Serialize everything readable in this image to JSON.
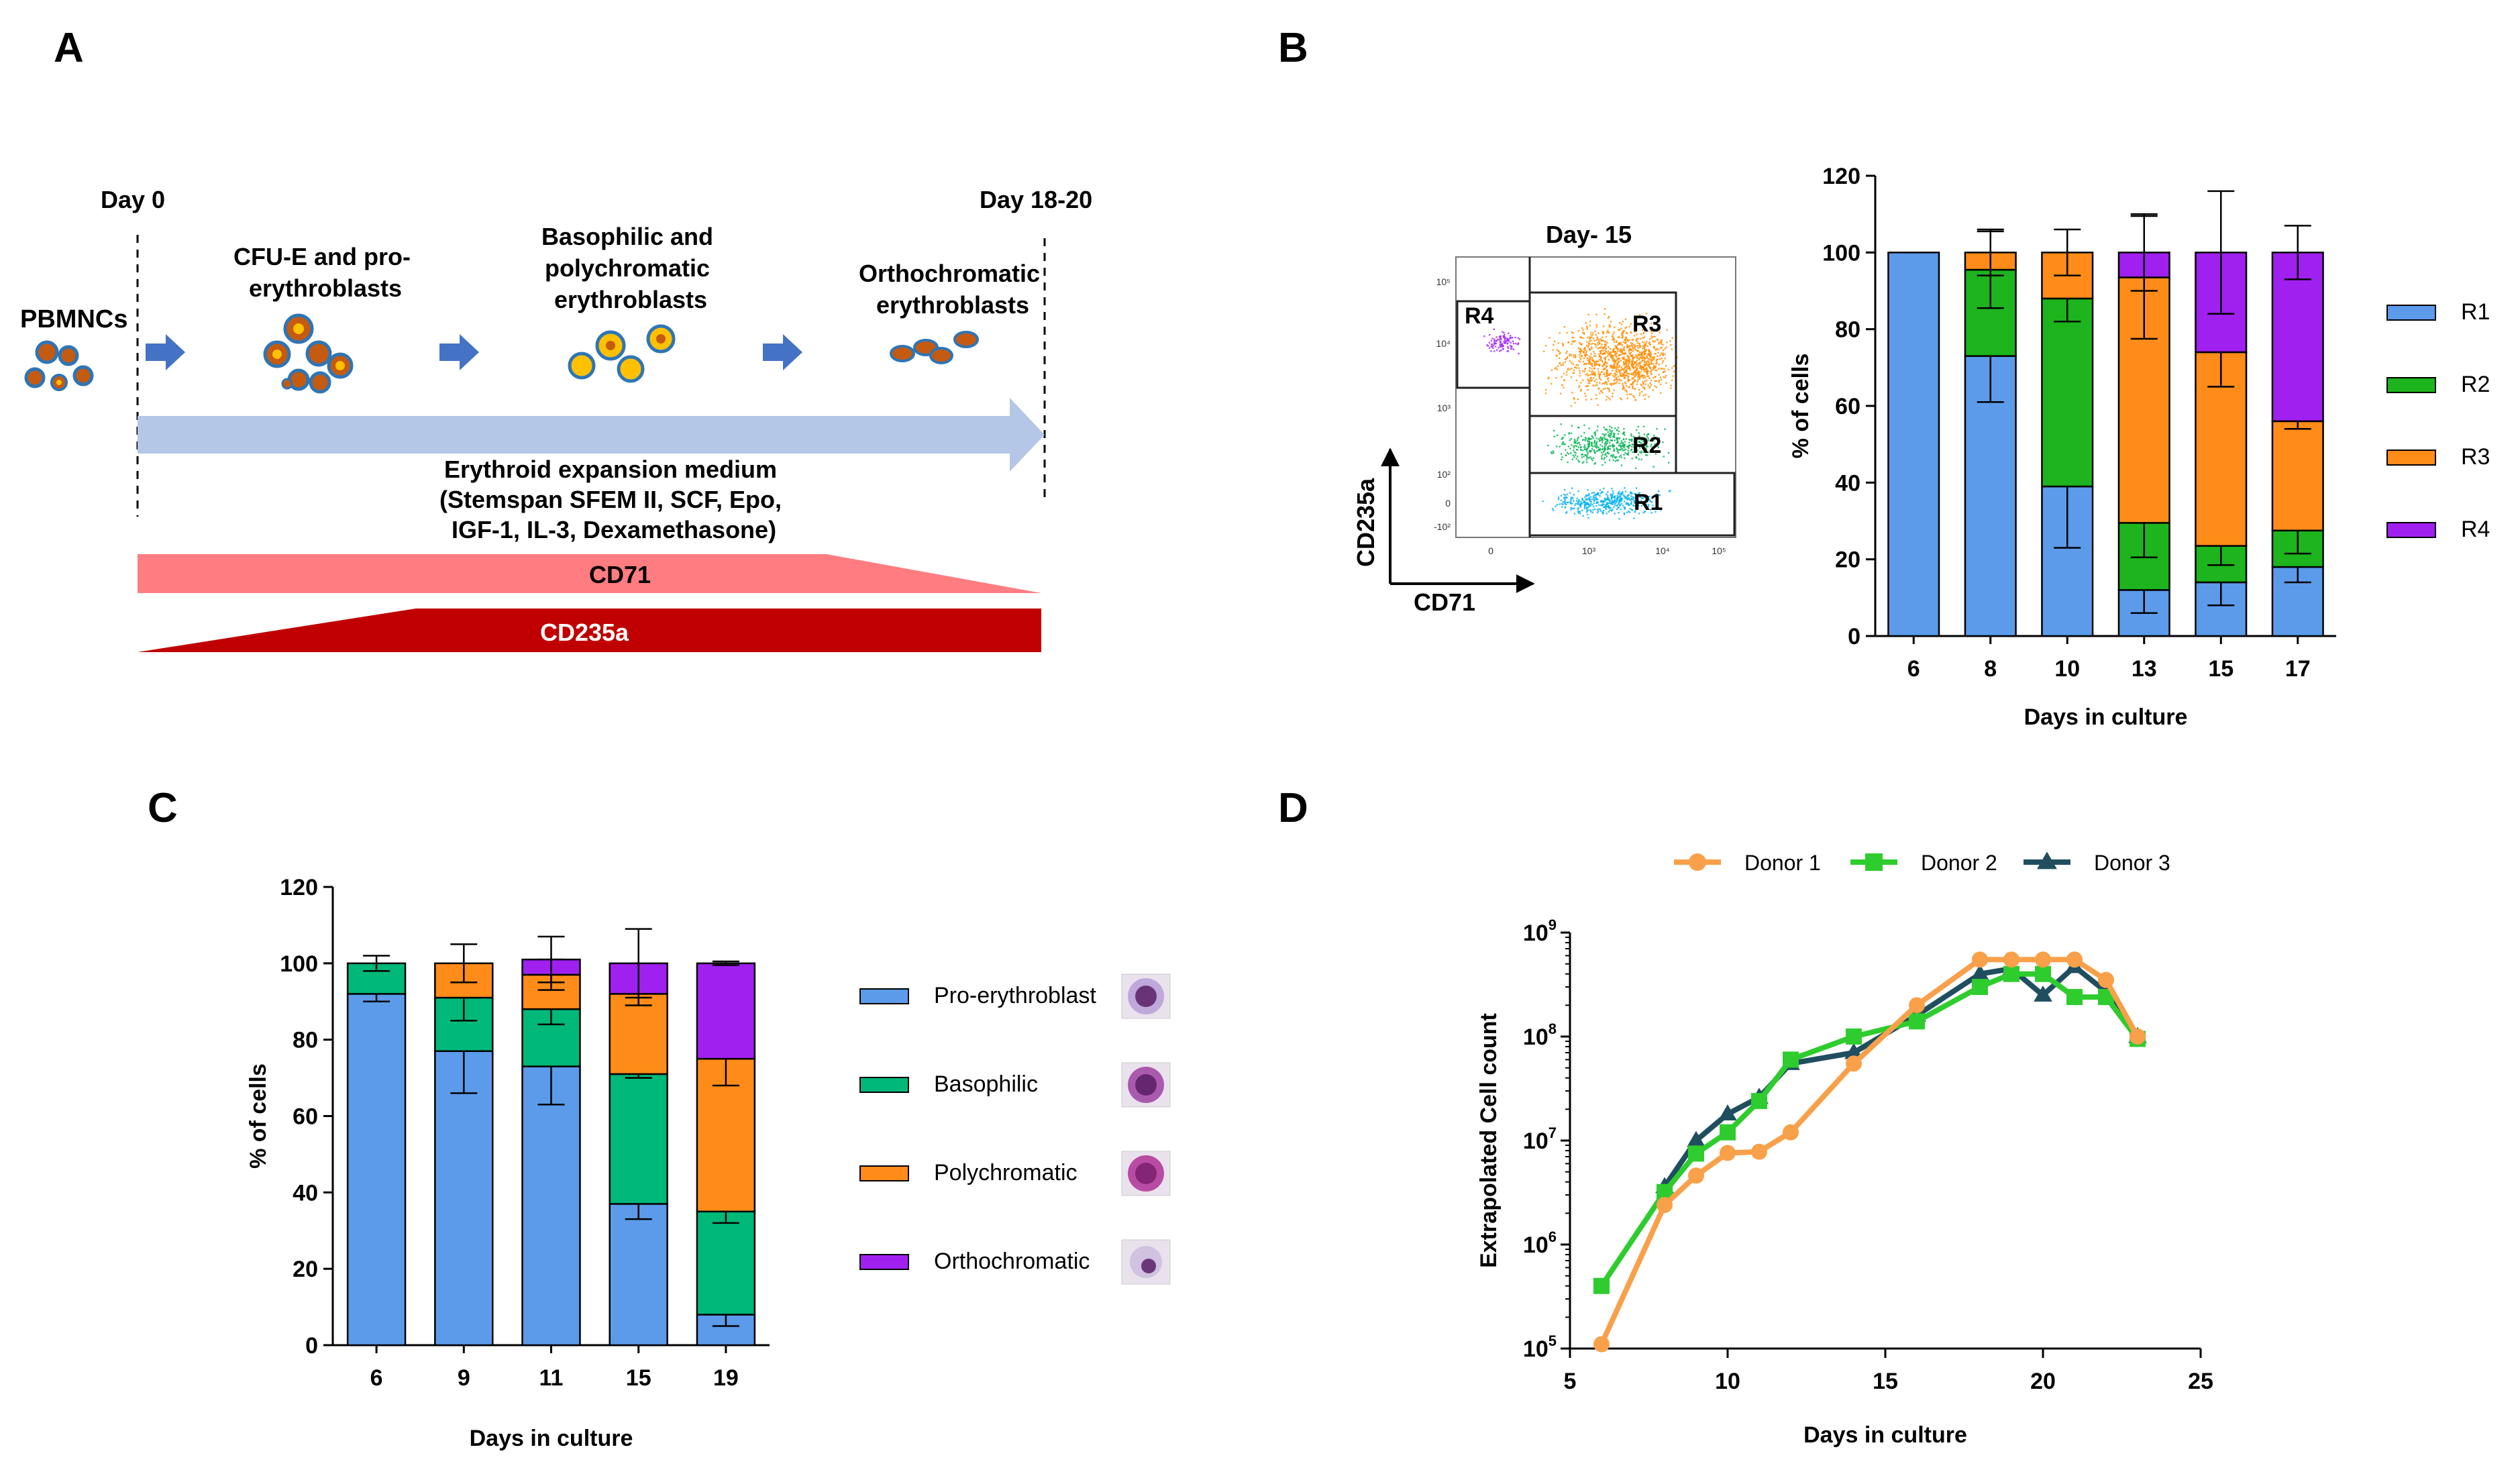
{
  "panels": {
    "a": "A",
    "b": "B",
    "c": "C",
    "d": "D"
  },
  "schematic": {
    "day_start": "Day 0",
    "day_end": "Day 18-20",
    "pbmncs": "PBMNCs",
    "stage1": [
      "CFU-E and pro-",
      "erythroblasts"
    ],
    "stage2": [
      "Basophilic and",
      "polychromatic",
      "erythroblasts"
    ],
    "stage3": [
      "Orthochromatic",
      "erythroblasts"
    ],
    "medium": [
      "Erythroid expansion medium",
      "(Stemspan SFEM II, SCF, Epo,",
      "IGF-1, IL-3, Dexamethasone)"
    ],
    "marker1": "CD71",
    "marker2": "CD235a",
    "colors": {
      "arrow": "#b4c7e7",
      "cd71": "#ff7c80",
      "cd235a": "#c00000",
      "step_arrow": "#4472c4",
      "cell_fill": "#c55a11",
      "cell_ring": "#2e75b6",
      "cell_yellow": "#ffc000"
    }
  },
  "flow": {
    "title": "Day- 15",
    "gates": [
      "R1",
      "R2",
      "R3",
      "R4"
    ],
    "ylabel": "CD235a",
    "xlabel": "CD71",
    "ticks_x": [
      "0",
      "10³",
      "10⁴",
      "10⁵"
    ],
    "ticks_y": [
      "10⁵",
      "10⁴",
      "10³",
      "10²",
      "0",
      "-10²"
    ],
    "colors": {
      "R1": "#00b0f0",
      "R2": "#00b050",
      "R3": "#ff8c00",
      "R4": "#a020f0"
    }
  },
  "chart_data": [
    {
      "id": "B",
      "type": "bar",
      "stacked": true,
      "categories": [
        "6",
        "8",
        "10",
        "13",
        "15",
        "17"
      ],
      "series": [
        {
          "name": "R1",
          "color": "#5b9bea",
          "values": [
            100,
            73,
            39,
            12,
            14,
            18
          ],
          "err": [
            0,
            12,
            16,
            6,
            6,
            4
          ]
        },
        {
          "name": "R2",
          "color": "#1db41d",
          "values": [
            0,
            22.5,
            49,
            17.5,
            9.5,
            9.5
          ],
          "err": [
            0,
            10,
            6,
            9,
            5,
            6
          ]
        },
        {
          "name": "R3",
          "color": "#ff8c19",
          "values": [
            0,
            4.5,
            12,
            64,
            50.5,
            28.5
          ],
          "err": [
            0,
            6,
            6,
            16,
            9,
            2
          ]
        },
        {
          "name": "R4",
          "color": "#a020f0",
          "values": [
            0,
            0,
            0,
            6.5,
            26,
            44
          ],
          "err": [
            0,
            0,
            0,
            10,
            16,
            7
          ]
        }
      ],
      "xlabel": "Days in culture",
      "ylabel": "% of cells",
      "ylim": [
        0,
        120
      ],
      "yticks": [
        0,
        20,
        40,
        60,
        80,
        100,
        120
      ],
      "legend": "right"
    },
    {
      "id": "C",
      "type": "bar",
      "stacked": true,
      "categories": [
        "6",
        "9",
        "11",
        "15",
        "19"
      ],
      "series": [
        {
          "name": "Pro-erythroblast",
          "color": "#5b9bea",
          "values": [
            92,
            77,
            73,
            37,
            8
          ],
          "err": [
            2,
            11,
            10,
            4,
            3
          ]
        },
        {
          "name": "Basophilic",
          "color": "#00b879",
          "values": [
            8,
            14,
            15,
            34,
            27
          ],
          "err": [
            2,
            6,
            4,
            1,
            3
          ]
        },
        {
          "name": "Polychromatic",
          "color": "#ff8c19",
          "values": [
            0,
            9,
            9,
            21,
            40
          ],
          "err": [
            0,
            5,
            4,
            3,
            7
          ]
        },
        {
          "name": "Orthochromatic",
          "color": "#a020f0",
          "values": [
            0,
            0,
            4,
            8,
            25
          ],
          "err": [
            0,
            0,
            6,
            9,
            0.5
          ]
        }
      ],
      "xlabel": "Days in culture",
      "ylabel": "% of cells",
      "ylim": [
        0,
        120
      ],
      "yticks": [
        0,
        20,
        40,
        60,
        80,
        100,
        120
      ],
      "legend": "right"
    },
    {
      "id": "D",
      "type": "line",
      "yscale": "log",
      "series": [
        {
          "name": "Donor 1",
          "color": "#f9a04a",
          "marker": "circle",
          "x": [
            6,
            8,
            9,
            10,
            11,
            12,
            14,
            16,
            18,
            19,
            20,
            21,
            22,
            23
          ],
          "y": [
            110000.0,
            2400000.0,
            4600000.0,
            7600000.0,
            7800000.0,
            12000000.0,
            55000000.0,
            200000000.0,
            550000000.0,
            550000000.0,
            550000000.0,
            550000000.0,
            350000000.0,
            100000000.0
          ]
        },
        {
          "name": "Donor 2",
          "color": "#2ecc2e",
          "marker": "square",
          "x": [
            6,
            8,
            9,
            10,
            11,
            12,
            14,
            16,
            18,
            19,
            20,
            21,
            22,
            23
          ],
          "y": [
            400000.0,
            3200000.0,
            7500000.0,
            12000000.0,
            24000000.0,
            60000000.0,
            100000000.0,
            140000000.0,
            300000000.0,
            400000000.0,
            400000000.0,
            240000000.0,
            240000000.0,
            95000000.0
          ]
        },
        {
          "name": "Donor 3",
          "color": "#1f4e5f",
          "marker": "triangle",
          "x": [
            8,
            9,
            10,
            11,
            12,
            14,
            16,
            18,
            19,
            20,
            21,
            22,
            23
          ],
          "y": [
            3600000.0,
            10000000.0,
            18000000.0,
            26000000.0,
            55000000.0,
            70000000.0,
            160000000.0,
            400000000.0,
            450000000.0,
            250000000.0,
            470000000.0,
            270000000.0,
            100000000.0
          ]
        }
      ],
      "xlabel": "Days in culture",
      "ylabel": "Extrapolated Cell count",
      "xlim": [
        5,
        25
      ],
      "xticks": [
        5,
        10,
        15,
        20,
        25
      ],
      "ylim": [
        100000.0,
        1000000000.0
      ],
      "ytick_labels": [
        {
          "base": "10",
          "exp": "5"
        },
        {
          "base": "10",
          "exp": "6"
        },
        {
          "base": "10",
          "exp": "7"
        },
        {
          "base": "10",
          "exp": "8"
        },
        {
          "base": "10",
          "exp": "9"
        }
      ],
      "legend": "top"
    }
  ]
}
